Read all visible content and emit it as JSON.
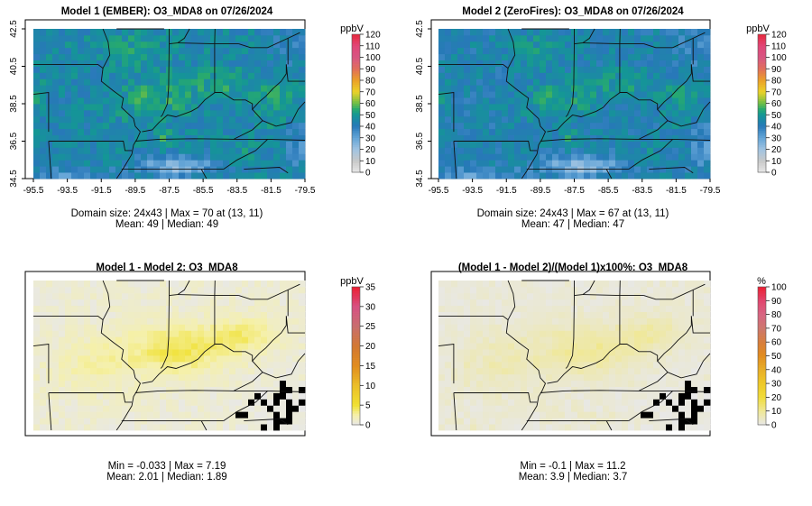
{
  "panels": [
    {
      "id": "model1",
      "title": "Model 1 (EMBER): O3_MDA8 on 07/26/2024",
      "legend_unit": "ppbV",
      "legend_ticks": [
        "0",
        "10",
        "20",
        "30",
        "40",
        "50",
        "60",
        "70",
        "80",
        "90",
        "100",
        "110",
        "120"
      ],
      "x_tick_labels": [
        "-95.5",
        "-93.5",
        "-91.5",
        "-89.5",
        "-87.5",
        "-85.5",
        "-83.5",
        "-81.5",
        "-79.5"
      ],
      "y_tick_labels": [
        "34.5",
        "36.5",
        "38.5",
        "40.5",
        "42.5"
      ],
      "stats_line1": "Domain size: 24x43 | Max = 70 at (13, 11)",
      "stats_line2": "Mean: 49 |  Median: 49"
    },
    {
      "id": "model2",
      "title": "Model 2 (ZeroFires): O3_MDA8 on 07/26/2024",
      "legend_unit": "ppbV",
      "legend_ticks": [
        "0",
        "10",
        "20",
        "30",
        "40",
        "50",
        "60",
        "70",
        "80",
        "90",
        "100",
        "110",
        "120"
      ],
      "x_tick_labels": [
        "-95.5",
        "-93.5",
        "-91.5",
        "-89.5",
        "-87.5",
        "-85.5",
        "-83.5",
        "-81.5",
        "-79.5"
      ],
      "y_tick_labels": [
        "34.5",
        "36.5",
        "38.5",
        "40.5",
        "42.5"
      ],
      "stats_line1": "Domain size: 24x43 | Max = 67 at (13, 11)",
      "stats_line2": "Mean: 47 |  Median: 47"
    },
    {
      "id": "diff",
      "title": "Model 1 - Model 2: O3_MDA8",
      "legend_unit": "ppbV",
      "legend_ticks": [
        "0",
        "5",
        "10",
        "15",
        "20",
        "25",
        "30",
        "35"
      ],
      "stats_line1": "Min = -0.033 | Max = 7.19",
      "stats_line2": "Mean: 2.01 |  Median: 1.89"
    },
    {
      "id": "pctdiff",
      "title": "(Model 1 - Model 2)/(Model 1)x100%: O3_MDA8",
      "legend_unit": "%",
      "legend_ticks": [
        "0",
        "10",
        "20",
        "30",
        "40",
        "50",
        "60",
        "70",
        "80",
        "90",
        "100"
      ],
      "stats_line1": "Min = -0.1 | Max = 11.2",
      "stats_line2": "Mean: 3.9 |  Median: 3.7"
    }
  ],
  "chart_data": [
    {
      "type": "heatmap",
      "title": "Model 1 (EMBER): O3_MDA8 on 07/26/2024",
      "xlim": [
        -95.5,
        -79.5
      ],
      "ylim": [
        34.5,
        42.5
      ],
      "scale_range": [
        0,
        120
      ],
      "unit": "ppbV",
      "domain_size": "24x43",
      "max": 70,
      "mean": 49,
      "median": 49
    },
    {
      "type": "heatmap",
      "title": "Model 2 (ZeroFires): O3_MDA8 on 07/26/2024",
      "xlim": [
        -95.5,
        -79.5
      ],
      "ylim": [
        34.5,
        42.5
      ],
      "scale_range": [
        0,
        120
      ],
      "unit": "ppbV",
      "domain_size": "24x43",
      "max": 67,
      "mean": 47,
      "median": 47
    },
    {
      "type": "heatmap",
      "title": "Model 1 - Model 2: O3_MDA8",
      "scale_range": [
        0,
        35
      ],
      "unit": "ppbV",
      "min": -0.033,
      "max": 7.19,
      "mean": 2.01,
      "median": 1.89
    },
    {
      "type": "heatmap",
      "title": "(Model 1 - Model 2)/(Model 1)x100%: O3_MDA8",
      "scale_range": [
        0,
        100
      ],
      "unit": "%",
      "min": -0.1,
      "max": 11.2,
      "mean": 3.9,
      "median": 3.7
    }
  ]
}
